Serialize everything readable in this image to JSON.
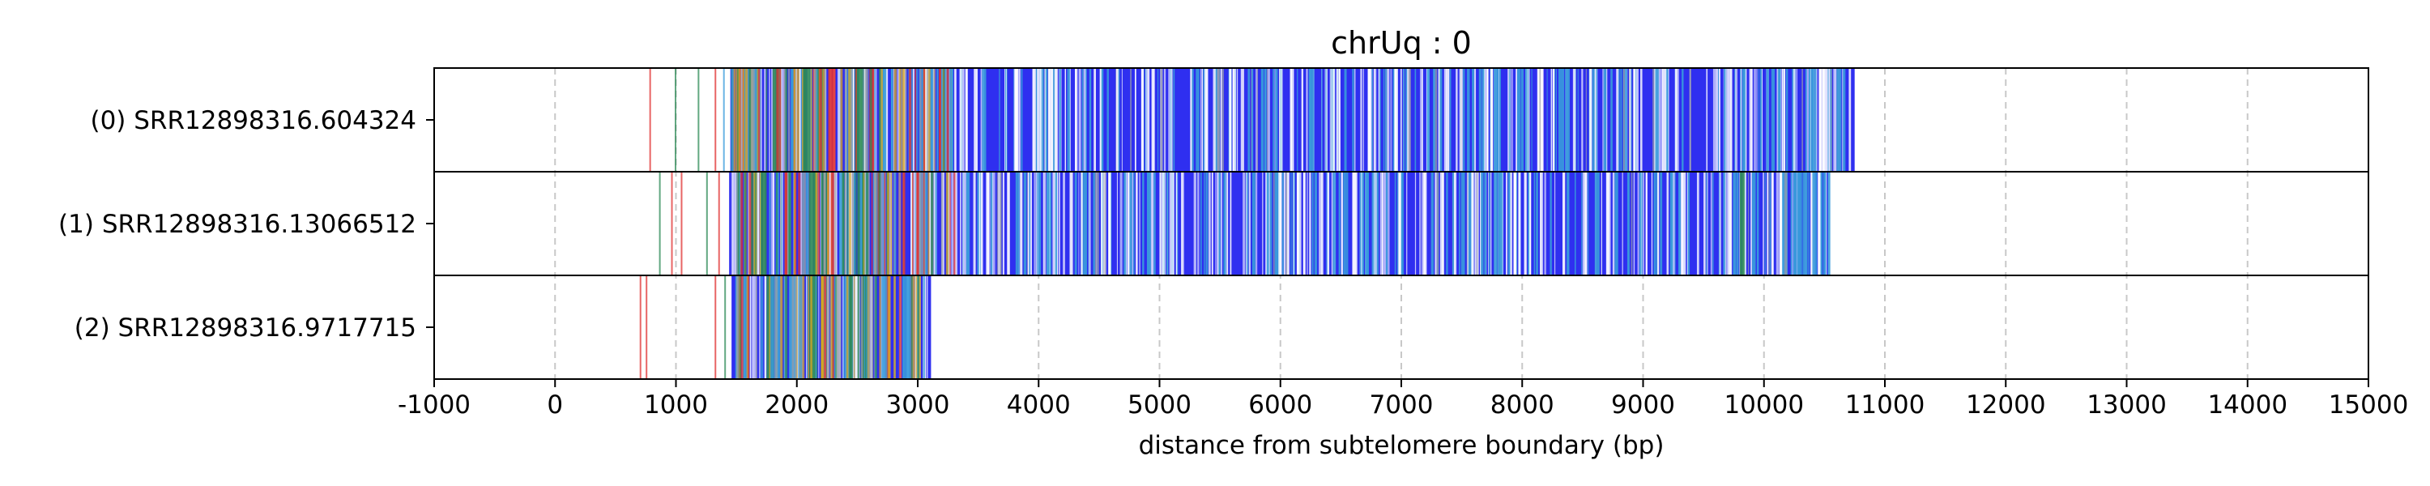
{
  "chart_data": {
    "type": "bar",
    "title": "chrUq : 0",
    "xlabel": "distance from subtelomere boundary (bp)",
    "ylabel": "",
    "xlim": [
      -1000,
      15000
    ],
    "xticks": [
      -1000,
      0,
      1000,
      2000,
      3000,
      4000,
      5000,
      6000,
      7000,
      8000,
      9000,
      10000,
      11000,
      12000,
      13000,
      14000,
      15000
    ],
    "tick_labels": [
      "-1000",
      "0",
      "1000",
      "2000",
      "3000",
      "4000",
      "5000",
      "6000",
      "7000",
      "8000",
      "9000",
      "10000",
      "11000",
      "12000",
      "13000",
      "14000",
      "15000"
    ],
    "grid": "vertical dashed",
    "colors": {
      "main": "#2f2ff0",
      "alt1": "#3a9bdc",
      "alt2": "#2e8b57",
      "alt3": "#e03131",
      "alt4": "#d9a520",
      "alt5": "#9aa0a6"
    },
    "rows": [
      {
        "label": "(0) SRR12898316.604324",
        "dense_start": 1450,
        "end": 10750,
        "sparse_marks": [
          {
            "x": 780,
            "c": "alt3"
          },
          {
            "x": 990,
            "c": "alt2"
          },
          {
            "x": 1180,
            "c": "alt2"
          },
          {
            "x": 1320,
            "c": "alt3"
          },
          {
            "x": 1390,
            "c": "alt1"
          }
        ],
        "accents": [
          {
            "x": 1500,
            "w": 40,
            "c": "alt4"
          },
          {
            "x": 1620,
            "w": 60,
            "c": "alt1"
          },
          {
            "x": 1800,
            "w": 50,
            "c": "alt2"
          },
          {
            "x": 1950,
            "w": 40,
            "c": "alt1"
          },
          {
            "x": 2050,
            "w": 60,
            "c": "alt2"
          },
          {
            "x": 2150,
            "w": 70,
            "c": "alt2"
          },
          {
            "x": 2260,
            "w": 60,
            "c": "alt3"
          },
          {
            "x": 2420,
            "w": 40,
            "c": "alt1"
          },
          {
            "x": 2480,
            "w": 60,
            "c": "alt2"
          },
          {
            "x": 2600,
            "w": 40,
            "c": "alt3"
          },
          {
            "x": 2700,
            "w": 40,
            "c": "alt1"
          },
          {
            "x": 3200,
            "w": 30,
            "c": "alt1"
          },
          {
            "x": 5300,
            "w": 30,
            "c": "alt1"
          },
          {
            "x": 6250,
            "w": 30,
            "c": "alt1"
          },
          {
            "x": 8300,
            "w": 40,
            "c": "alt1"
          },
          {
            "x": 9100,
            "w": 30,
            "c": "alt1"
          },
          {
            "x": 10600,
            "w": 40,
            "c": "alt1"
          }
        ]
      },
      {
        "label": "(1) SRR12898316.13066512",
        "dense_start": 1440,
        "end": 10530,
        "sparse_marks": [
          {
            "x": 860,
            "c": "alt2"
          },
          {
            "x": 960,
            "c": "alt3"
          },
          {
            "x": 1040,
            "c": "alt3"
          },
          {
            "x": 1250,
            "c": "alt2"
          },
          {
            "x": 1350,
            "c": "alt3"
          }
        ],
        "accents": [
          {
            "x": 1500,
            "w": 40,
            "c": "alt1"
          },
          {
            "x": 1700,
            "w": 50,
            "c": "alt2"
          },
          {
            "x": 1900,
            "w": 50,
            "c": "alt1"
          },
          {
            "x": 2100,
            "w": 60,
            "c": "alt2"
          },
          {
            "x": 2200,
            "w": 50,
            "c": "alt2"
          },
          {
            "x": 2350,
            "w": 40,
            "c": "alt1"
          },
          {
            "x": 2500,
            "w": 60,
            "c": "alt2"
          },
          {
            "x": 2650,
            "w": 40,
            "c": "alt3"
          },
          {
            "x": 3400,
            "w": 30,
            "c": "alt1"
          },
          {
            "x": 4900,
            "w": 30,
            "c": "alt1"
          },
          {
            "x": 6700,
            "w": 30,
            "c": "alt1"
          },
          {
            "x": 7800,
            "w": 40,
            "c": "alt1"
          },
          {
            "x": 8600,
            "w": 30,
            "c": "alt1"
          },
          {
            "x": 9800,
            "w": 40,
            "c": "alt2"
          },
          {
            "x": 10400,
            "w": 40,
            "c": "alt1"
          }
        ]
      },
      {
        "label": "(2) SRR12898316.9717715",
        "dense_start": 1460,
        "end": 3110,
        "sparse_marks": [
          {
            "x": 700,
            "c": "alt3"
          },
          {
            "x": 750,
            "c": "alt3"
          },
          {
            "x": 1320,
            "c": "alt3"
          },
          {
            "x": 1400,
            "c": "alt2"
          }
        ],
        "accents": [
          {
            "x": 1550,
            "w": 40,
            "c": "alt1"
          },
          {
            "x": 1750,
            "w": 50,
            "c": "alt2"
          },
          {
            "x": 1950,
            "w": 40,
            "c": "alt1"
          },
          {
            "x": 2100,
            "w": 60,
            "c": "alt2"
          },
          {
            "x": 2200,
            "w": 50,
            "c": "alt2"
          },
          {
            "x": 2400,
            "w": 40,
            "c": "alt1"
          },
          {
            "x": 2550,
            "w": 50,
            "c": "alt2"
          },
          {
            "x": 2700,
            "w": 40,
            "c": "alt1"
          },
          {
            "x": 2900,
            "w": 40,
            "c": "alt1"
          }
        ]
      }
    ]
  }
}
